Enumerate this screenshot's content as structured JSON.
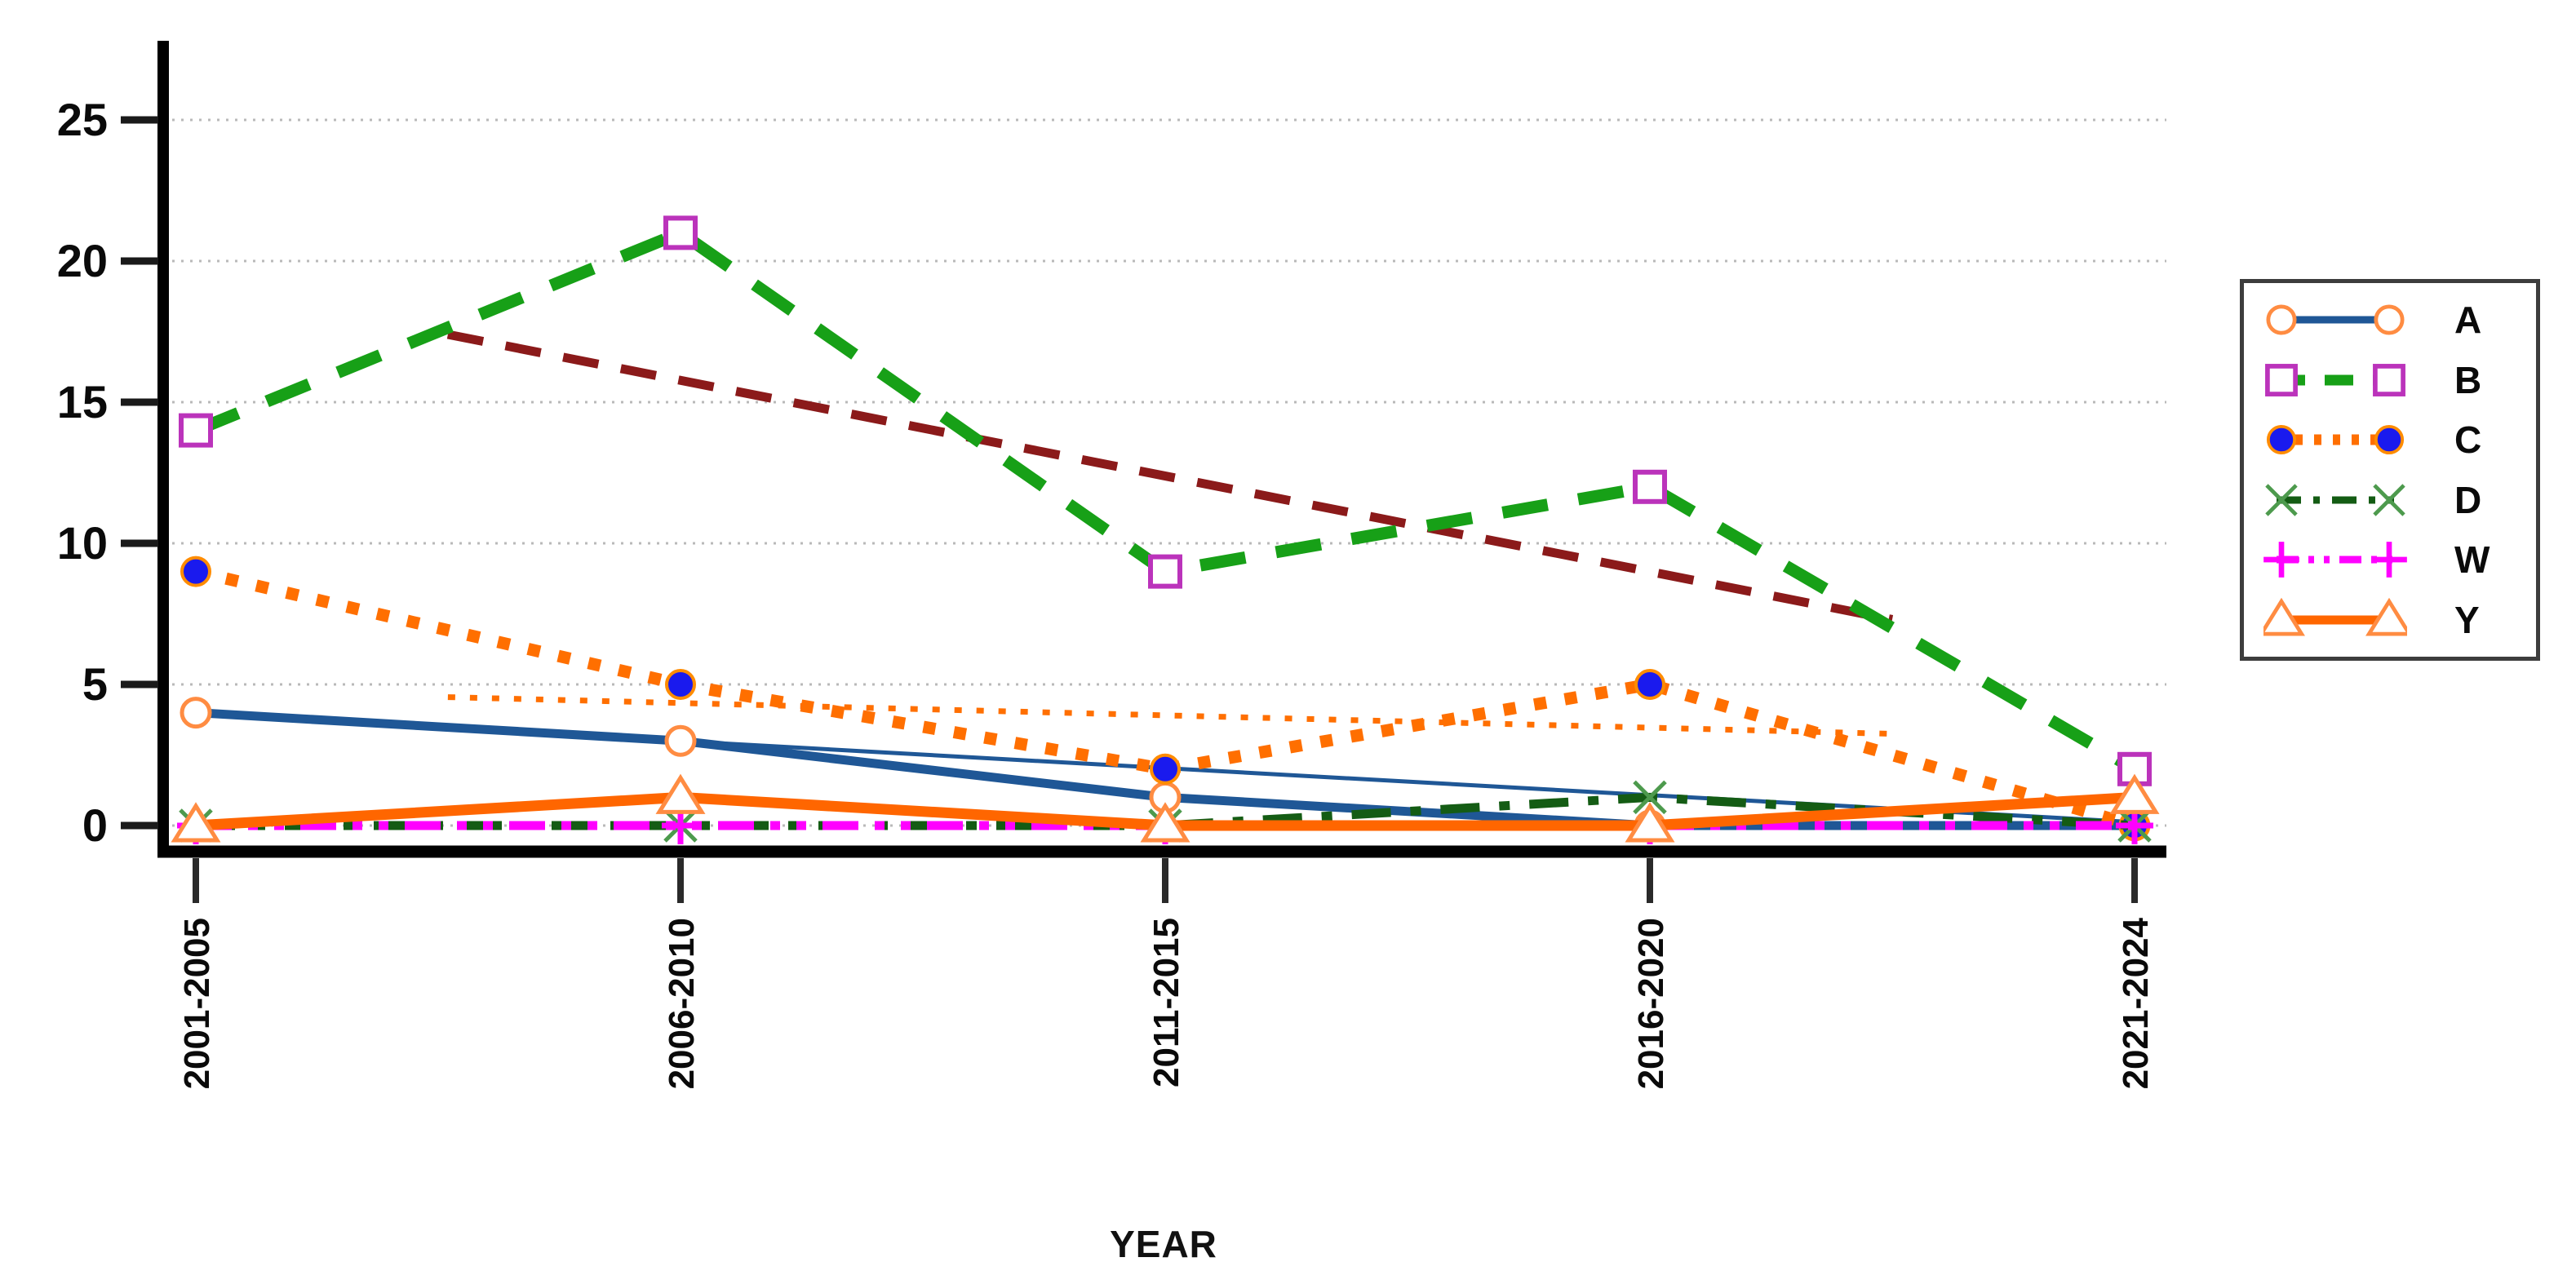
{
  "chart_data": {
    "type": "line",
    "title": "",
    "xlabel": "YEAR",
    "ylabel": "",
    "categories": [
      "2001-2005",
      "2006-2010",
      "2011-2015",
      "2016-2020",
      "2021-2024"
    ],
    "y_ticks": [
      0,
      5,
      10,
      15,
      20,
      25
    ],
    "ylim": [
      0,
      27
    ],
    "grid": "horizontal-dotted",
    "legend_position": "right-outside",
    "series": [
      {
        "name": "A",
        "values": [
          4,
          3,
          1,
          0,
          0
        ],
        "line": {
          "color": "#1f5796",
          "style": "solid",
          "width": 11
        },
        "marker": {
          "shape": "circle-open",
          "color": "#ff8c42",
          "fill": "#ffffff"
        }
      },
      {
        "name": "B",
        "values": [
          14,
          21,
          9,
          12,
          2
        ],
        "line": {
          "color": "#17a017",
          "style": "dashed",
          "width": 15
        },
        "marker": {
          "shape": "square-open",
          "color": "#bb33bb",
          "fill": "#ffffff"
        }
      },
      {
        "name": "C",
        "values": [
          9,
          5,
          2,
          5,
          0
        ],
        "line": {
          "color": "#ff6f00",
          "style": "dotted",
          "width": 15
        },
        "marker": {
          "shape": "circle-filled",
          "color": "#ff8c00",
          "fill": "#1a1aee"
        }
      },
      {
        "name": "D",
        "values": [
          0,
          0,
          0,
          1,
          0
        ],
        "line": {
          "color": "#145c14",
          "style": "dash-dot",
          "width": 11
        },
        "marker": {
          "shape": "x",
          "color": "#4d9a4d"
        }
      },
      {
        "name": "W",
        "values": [
          0,
          0,
          0,
          0,
          0
        ],
        "line": {
          "color": "#ff00ff",
          "style": "dash-dot-dot",
          "width": 11
        },
        "marker": {
          "shape": "plus",
          "color": "#ff00ff"
        }
      },
      {
        "name": "Y",
        "values": [
          0,
          1,
          0,
          0,
          1
        ],
        "line": {
          "color": "#ff6600",
          "style": "solid",
          "width": 13
        },
        "marker": {
          "shape": "triangle-open",
          "color": "#ff8c42",
          "fill": "#ffffff"
        }
      }
    ],
    "annotation_lines": [
      {
        "name": "trend-dark-red-dashed",
        "color": "#8b1a1a",
        "style": "dashed-mid",
        "width": 11,
        "from": {
          "x": 0.52,
          "y": 17.4
        },
        "to": {
          "x": 3.5,
          "y": 7.3
        }
      },
      {
        "name": "trend-thin-blue-solid",
        "color": "#1f5796",
        "style": "solid",
        "width": 5,
        "from": {
          "x": 0.0,
          "y": 3.95
        },
        "to": {
          "x": 4.0,
          "y": 0.12
        }
      },
      {
        "name": "trend-thin-orange-dotted",
        "color": "#ff6f00",
        "style": "dotted-fine",
        "width": 7,
        "from": {
          "x": 0.52,
          "y": 4.55
        },
        "to": {
          "x": 3.5,
          "y": 3.25
        }
      }
    ]
  }
}
